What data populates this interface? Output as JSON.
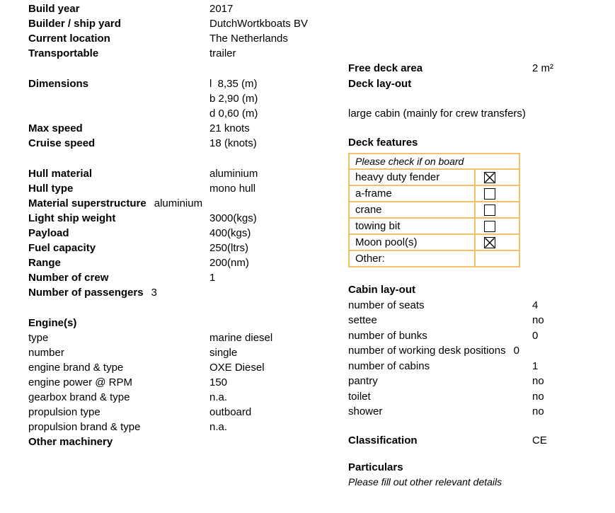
{
  "colors": {
    "accent": "#F4BF69",
    "text": "#000000",
    "background": "#FFFFFF"
  },
  "left_column": {
    "groups": [
      {
        "name": "general",
        "rows": [
          {
            "label": "Build year",
            "value": "2017",
            "bold": true
          },
          {
            "label": "Builder / ship yard",
            "value": "DutchWortkboats BV",
            "bold": true
          },
          {
            "label": "Current location",
            "value": "The Netherlands",
            "bold": true
          },
          {
            "label": "Transportable",
            "value": "trailer",
            "bold": true
          }
        ]
      },
      {
        "name": "dimensions-speed",
        "rows": [
          {
            "label": "Dimensions",
            "value": "l  8,35 (m)",
            "bold": true
          },
          {
            "label": "",
            "value": "b 2,90 (m)"
          },
          {
            "label": "",
            "value": "d 0,60 (m)"
          },
          {
            "label": "Max speed",
            "value": "21 knots",
            "bold": true
          },
          {
            "label": "Cruise speed",
            "value": "18 (knots)",
            "bold": true
          }
        ]
      },
      {
        "name": "hull-weights",
        "rows": [
          {
            "label": "Hull material",
            "value": "aluminium",
            "bold": true
          },
          {
            "label": "Hull type",
            "value": "mono hull",
            "bold": true
          },
          {
            "label": "Material superstructure",
            "value": "aluminium",
            "bold": true,
            "tight": true
          },
          {
            "label": "Light ship weight",
            "value": "3000(kgs)",
            "bold": true
          },
          {
            "label": "Payload",
            "value": "400(kgs)",
            "bold": true
          },
          {
            "label": "Fuel capacity",
            "value": "250(ltrs)",
            "bold": true
          },
          {
            "label": "Range",
            "value": "200(nm)",
            "bold": true
          },
          {
            "label": "Number of crew",
            "value": "1",
            "bold": true
          },
          {
            "label": "Number of passengers",
            "value": "3",
            "bold": true,
            "tight": true
          }
        ]
      },
      {
        "name": "engines",
        "rows": [
          {
            "label": "Engine(s)",
            "value": "",
            "bold": true
          },
          {
            "label": "type",
            "value": "marine diesel"
          },
          {
            "label": "number",
            "value": "single"
          },
          {
            "label": "engine brand & type",
            "value": "OXE Diesel"
          },
          {
            "label": "engine power @ RPM",
            "value": "150"
          },
          {
            "label": "gearbox brand & type",
            "value": "n.a."
          },
          {
            "label": "propulsion type",
            "value": "outboard"
          },
          {
            "label": "propulsion brand & type",
            "value": "n.a."
          },
          {
            "label": "Other machinery",
            "value": "",
            "bold": true
          }
        ]
      }
    ]
  },
  "right_column": {
    "free_deck_area": {
      "label": "Free deck area",
      "value": "2 m²"
    },
    "deck_layout": {
      "label": "Deck lay-out",
      "description": "large cabin (mainly for crew transfers)"
    },
    "deck_features": {
      "title": "Deck features",
      "table_header": "Please check if on board",
      "items": [
        {
          "label": "heavy duty fender",
          "checked": true
        },
        {
          "label": "a-frame",
          "checked": false
        },
        {
          "label": "crane",
          "checked": false
        },
        {
          "label": "towing bit",
          "checked": false
        },
        {
          "label": "Moon pool(s)",
          "checked": true
        },
        {
          "label": "Other:",
          "checked": null
        }
      ]
    },
    "cabin_layout": {
      "title": "Cabin lay-out",
      "rows": [
        {
          "label": "number of seats",
          "value": "4"
        },
        {
          "label": "settee",
          "value": "no"
        },
        {
          "label": "number of bunks",
          "value": "0"
        },
        {
          "label": "number of working desk positions",
          "value": "0",
          "tight": true
        },
        {
          "label": "number of cabins",
          "value": "1"
        },
        {
          "label": "pantry",
          "value": "no"
        },
        {
          "label": "toilet",
          "value": "no"
        },
        {
          "label": "shower",
          "value": "no"
        }
      ]
    },
    "classification": {
      "label": "Classification",
      "value": "CE"
    },
    "particulars": {
      "title": "Particulars",
      "subtitle": "Please fill out other relevant details"
    }
  }
}
